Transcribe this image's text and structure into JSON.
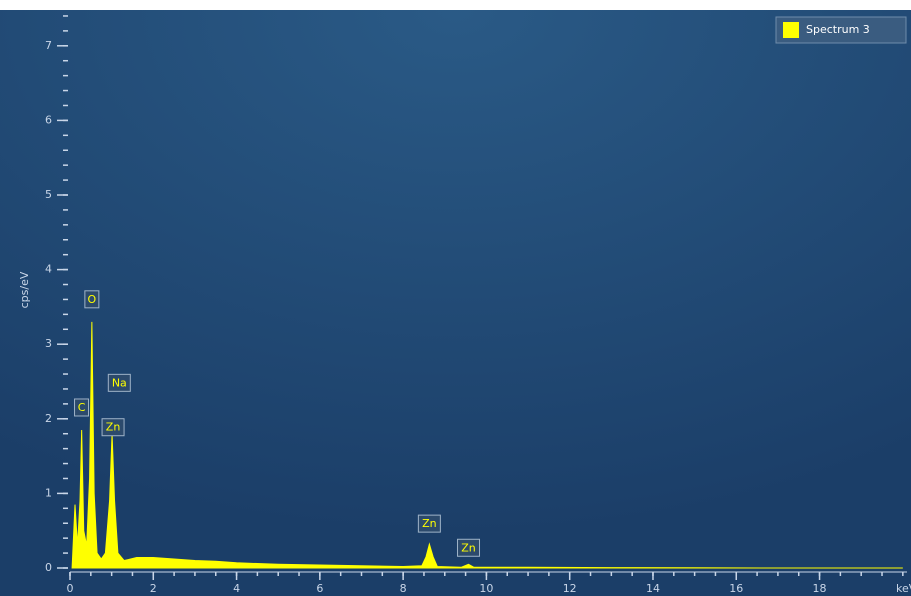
{
  "chart_data": {
    "type": "area",
    "ylabel": "cps/eV",
    "xlabel": "keV",
    "legend_position": "top-right",
    "series": [
      {
        "name": "Spectrum 3",
        "color": "#ffff00",
        "x": [
          0.05,
          0.12,
          0.18,
          0.24,
          0.28,
          0.33,
          0.4,
          0.47,
          0.525,
          0.58,
          0.65,
          0.75,
          0.85,
          0.95,
          1.01,
          1.07,
          1.15,
          1.3,
          1.6,
          2.0,
          2.5,
          3,
          3.5,
          4,
          5,
          6,
          7,
          8,
          8.45,
          8.55,
          8.63,
          8.72,
          8.82,
          9.4,
          9.57,
          9.7,
          11,
          13,
          15,
          17,
          20
        ],
        "values": [
          0,
          0.85,
          0.3,
          0.9,
          1.85,
          0.5,
          0.3,
          1.2,
          3.3,
          1.0,
          0.2,
          0.12,
          0.2,
          0.9,
          1.8,
          0.9,
          0.2,
          0.1,
          0.14,
          0.14,
          0.12,
          0.1,
          0.09,
          0.07,
          0.05,
          0.04,
          0.03,
          0.02,
          0.03,
          0.15,
          0.32,
          0.15,
          0.02,
          0.01,
          0.05,
          0.01,
          0.01,
          0.005,
          0.003,
          0,
          0
        ]
      }
    ],
    "peak_labels": [
      {
        "label": "C",
        "x": 0.277,
        "y": 1.85
      },
      {
        "label": "O",
        "x": 0.525,
        "y": 3.3
      },
      {
        "label": "Na",
        "x": 1.04,
        "y": 2.1
      },
      {
        "label": "Zn",
        "x": 1.01,
        "y": 1.8
      },
      {
        "label": "Zn",
        "x": 8.63,
        "y": 0.32
      },
      {
        "label": "Zn",
        "x": 9.57,
        "y": 0.05
      }
    ],
    "xlim": [
      0,
      20.1
    ],
    "ylim": [
      0,
      7.5
    ],
    "xticks": [
      0,
      2,
      4,
      6,
      8,
      10,
      12,
      14,
      16,
      18
    ],
    "yticks": [
      0,
      1,
      2,
      3,
      4,
      5,
      6,
      7
    ]
  }
}
